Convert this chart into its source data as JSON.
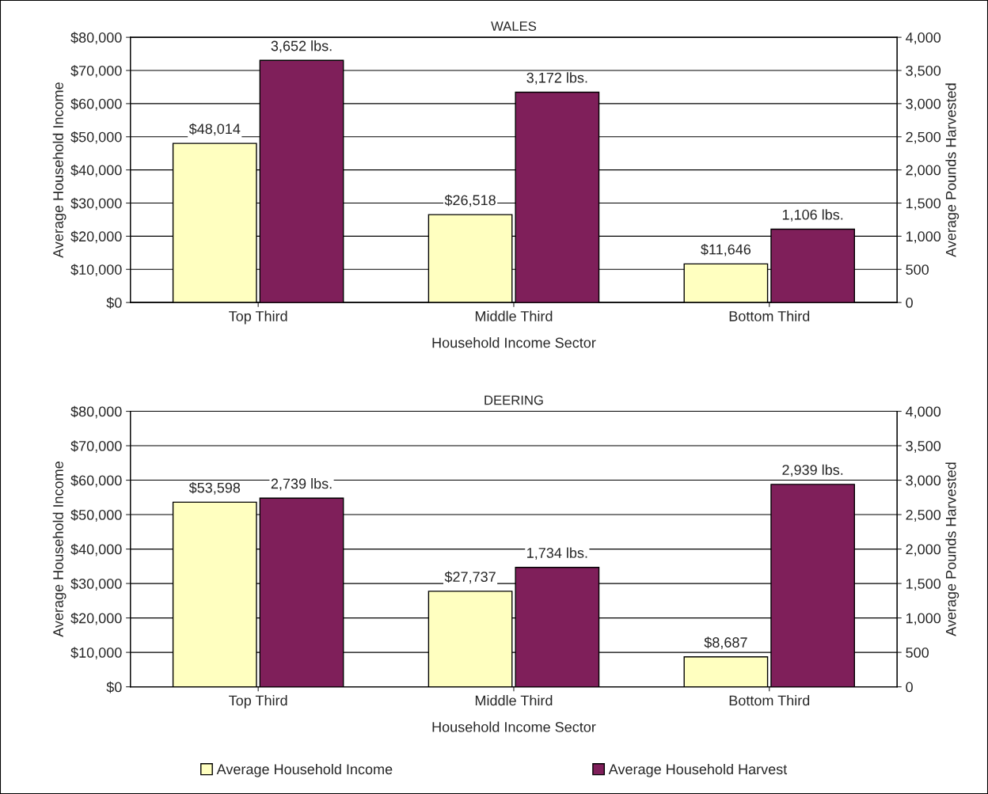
{
  "chart_data": [
    {
      "type": "bar",
      "title": "WALES",
      "xlabel": "Household Income Sector",
      "ylabel": "Average Household Income",
      "y2label": "Average Pounds Harvested",
      "categories": [
        "Top Third",
        "Middle Third",
        "Bottom Third"
      ],
      "series": [
        {
          "name": "Average Household Income",
          "color": "#ffffc0",
          "values": [
            48014,
            26518,
            11646
          ],
          "value_labels": [
            "$48,014",
            "$26,518",
            "$11,646"
          ]
        },
        {
          "name": "Average Household Harvest",
          "color": "#7f1f5a",
          "axis": "y2",
          "values": [
            3652,
            3172,
            1106
          ],
          "value_labels": [
            "3,652 lbs.",
            "3,172 lbs.",
            "1,106 lbs."
          ]
        }
      ],
      "ylim": [
        0,
        80000
      ],
      "yticks": [
        {
          "value": 0,
          "label": "$0"
        },
        {
          "value": 10000,
          "label": "$10,000"
        },
        {
          "value": 20000,
          "label": "$20,000"
        },
        {
          "value": 30000,
          "label": "$30,000"
        },
        {
          "value": 40000,
          "label": "$40,000"
        },
        {
          "value": 50000,
          "label": "$50,000"
        },
        {
          "value": 60000,
          "label": "$60,000"
        },
        {
          "value": 70000,
          "label": "$70,000"
        },
        {
          "value": 80000,
          "label": "$80,000"
        }
      ],
      "y2lim": [
        0,
        4000
      ],
      "y2ticks": [
        0,
        500,
        {
          "value": 1000,
          "label": "1,000"
        },
        {
          "value": 1500,
          "label": "1,500"
        },
        {
          "value": 2000,
          "label": "2,000"
        },
        {
          "value": 2500,
          "label": "2,500"
        },
        {
          "value": 3000,
          "label": "3,000"
        },
        {
          "value": 3500,
          "label": "3,500"
        },
        {
          "value": 4000,
          "label": "4,000"
        }
      ],
      "grid": "y",
      "legend": "bottom"
    },
    {
      "type": "bar",
      "title": "DEERING",
      "xlabel": "Household Income Sector",
      "ylabel": "Average Household Income",
      "y2label": "Average Pounds Harvested",
      "categories": [
        "Top Third",
        "Middle Third",
        "Bottom Third"
      ],
      "series": [
        {
          "color": "#ffffc0",
          "values": [
            53598,
            27737,
            8687
          ],
          "value_labels": [
            "$53,598",
            "$27,737",
            "$8,687"
          ]
        },
        {
          "color": "#7f1f5a",
          "axis": "y2",
          "values": [
            2739,
            1734,
            2939
          ],
          "value_labels": [
            "2,739 lbs.",
            "1,734 lbs.",
            "2,939 lbs."
          ]
        }
      ],
      "ylim": [
        0,
        80000
      ],
      "yticks": [
        {
          "value": 0,
          "label": "$0"
        },
        {
          "value": 10000,
          "label": "$10,000"
        },
        {
          "value": 20000,
          "label": "$20,000"
        },
        {
          "value": 30000,
          "label": "$30,000"
        },
        {
          "value": 40000,
          "label": "$40,000"
        },
        {
          "value": 50000,
          "label": "$50,000"
        },
        {
          "value": 60000,
          "label": "$60,000"
        },
        {
          "value": 70000,
          "label": "$70,000"
        },
        {
          "value": 80000,
          "label": "$80,000"
        }
      ],
      "y2lim": [
        0,
        4000
      ],
      "y2ticks": [
        0,
        500,
        {
          "value": 1000,
          "label": "1,000"
        },
        {
          "value": 1500,
          "label": "1,500"
        },
        {
          "value": 2000,
          "label": "2,000"
        },
        {
          "value": 2500,
          "label": "2,500"
        },
        {
          "value": 3000,
          "label": "3,000"
        },
        {
          "value": 3500,
          "label": "3,500"
        },
        {
          "value": 4000,
          "label": "4,000"
        }
      ],
      "grid": "y"
    }
  ]
}
